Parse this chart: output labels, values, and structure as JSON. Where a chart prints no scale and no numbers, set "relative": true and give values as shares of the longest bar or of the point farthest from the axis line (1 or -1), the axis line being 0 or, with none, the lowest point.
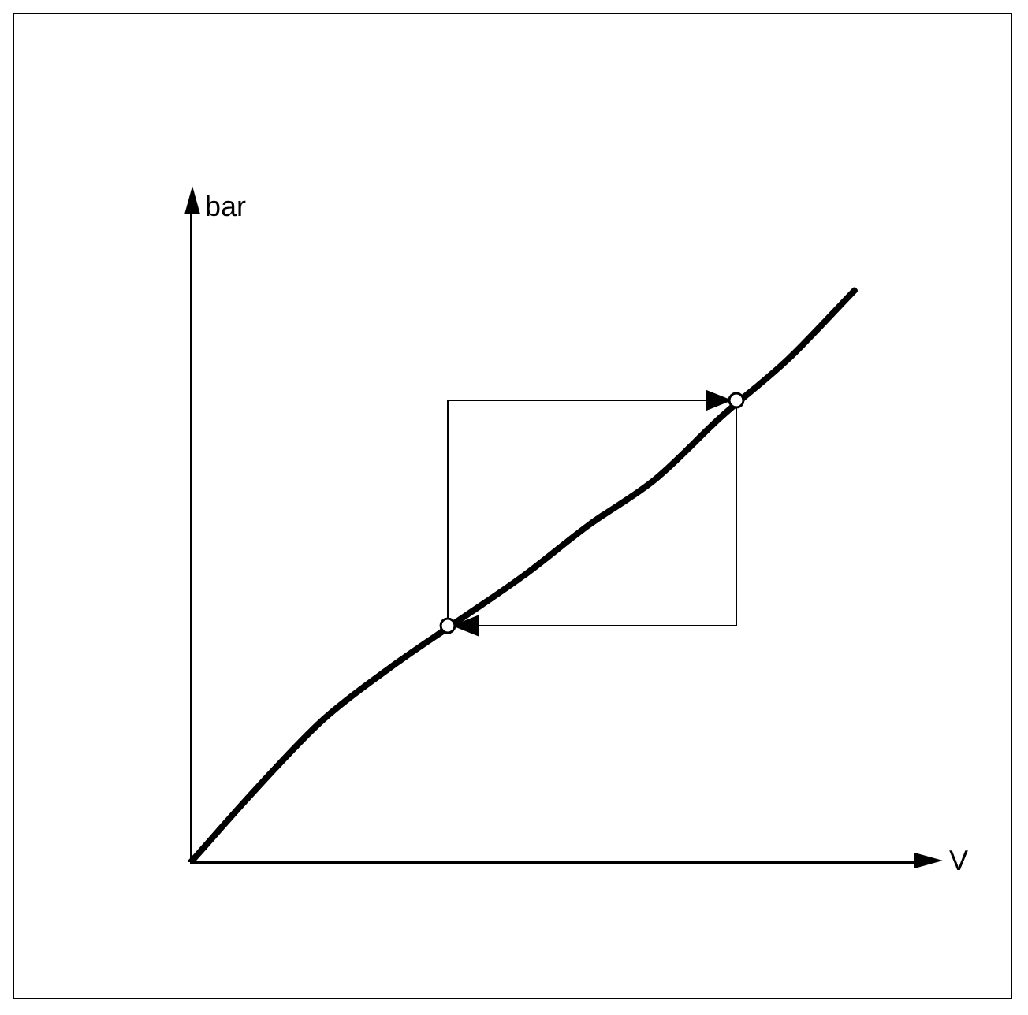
{
  "chart_data": {
    "type": "line",
    "relative": true,
    "xlabel": "V",
    "ylabel": "bar",
    "categories": [
      null,
      null,
      null,
      null,
      null,
      null,
      null,
      null,
      null,
      null,
      null,
      null
    ],
    "series": [
      {
        "color": "#000000",
        "values": [
          0,
          0.13,
          0.25,
          0.34,
          0.42,
          0.5,
          0.59,
          0.67,
          0.78,
          0.88,
          1,
          null
        ]
      }
    ],
    "marker": "none",
    "line_style": "solid",
    "grid": false,
    "legend": false
  }
}
